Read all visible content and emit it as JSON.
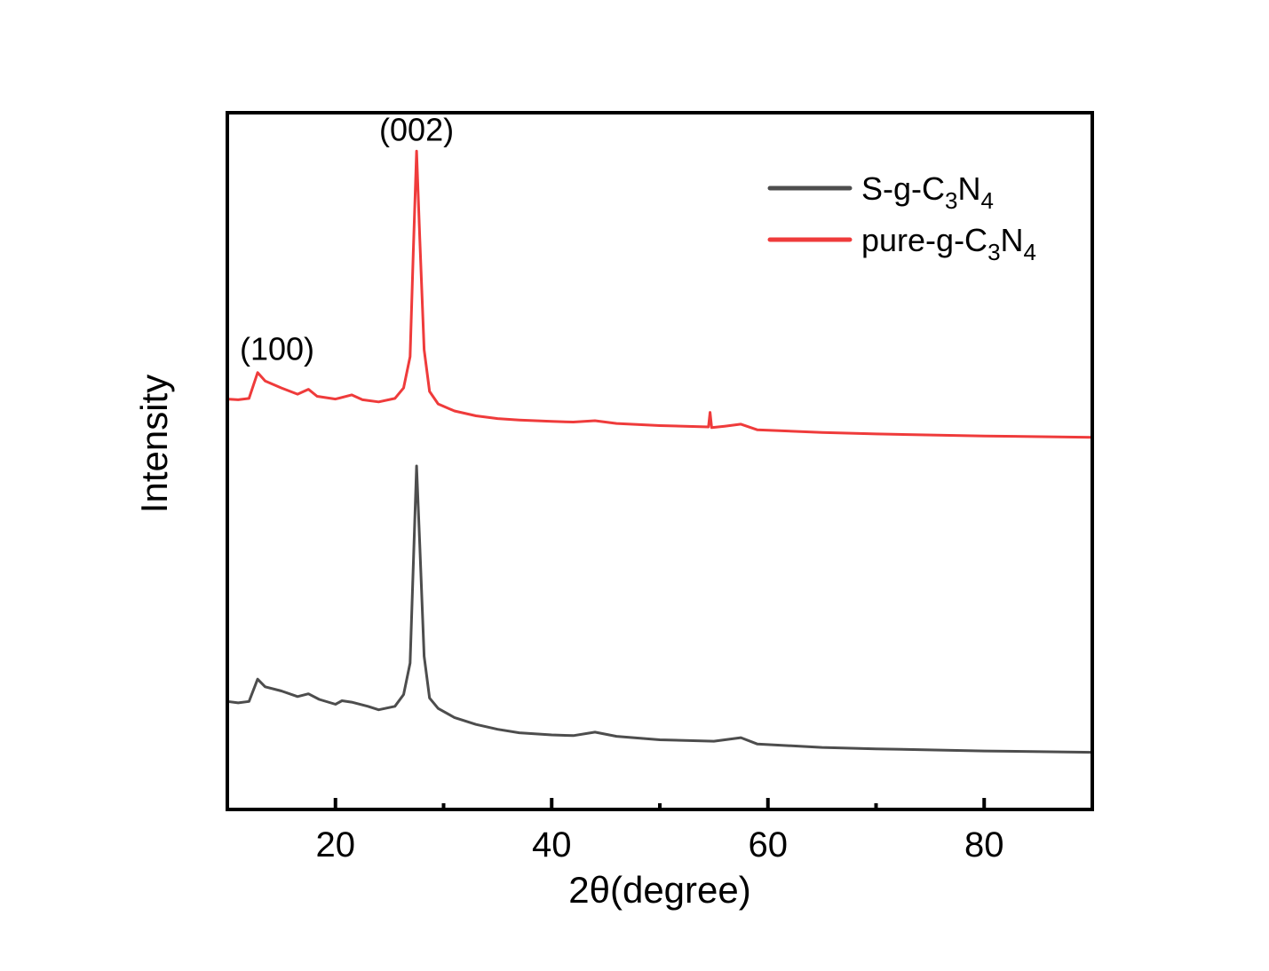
{
  "chart_data": {
    "type": "line",
    "title": "",
    "xlabel": "2θ(degree)",
    "ylabel": "Intensity",
    "xlim": [
      10,
      90
    ],
    "ylim": [
      0,
      100
    ],
    "xticks": [
      20,
      40,
      60,
      80
    ],
    "xticks_minor": [
      30,
      50,
      70
    ],
    "yticks": [],
    "grid": false,
    "legend_position": "top-right",
    "series": [
      {
        "name": "S-g-C3N4",
        "label_main": "S-g-C",
        "sub1": "3",
        "label_mid": "N",
        "sub2": "4",
        "color": "#4d4d4d",
        "points": [
          [
            10,
            15.5
          ],
          [
            11,
            15.3
          ],
          [
            12,
            15.5
          ],
          [
            12.8,
            18.7
          ],
          [
            13.5,
            17.6
          ],
          [
            15,
            17
          ],
          [
            16.5,
            16.2
          ],
          [
            17.5,
            16.6
          ],
          [
            18.5,
            15.8
          ],
          [
            20,
            15.1
          ],
          [
            20.6,
            15.6
          ],
          [
            21.5,
            15.4
          ],
          [
            23,
            14.8
          ],
          [
            24,
            14.3
          ],
          [
            25.5,
            14.8
          ],
          [
            26.3,
            16.5
          ],
          [
            26.9,
            21
          ],
          [
            27.2,
            35
          ],
          [
            27.5,
            49.3
          ],
          [
            27.8,
            38
          ],
          [
            28.2,
            22
          ],
          [
            28.7,
            16
          ],
          [
            29.5,
            14.5
          ],
          [
            31,
            13.2
          ],
          [
            33,
            12.2
          ],
          [
            35,
            11.5
          ],
          [
            37,
            11
          ],
          [
            40,
            10.7
          ],
          [
            42,
            10.6
          ],
          [
            44,
            11.1
          ],
          [
            46,
            10.5
          ],
          [
            50,
            10
          ],
          [
            55,
            9.8
          ],
          [
            57.5,
            10.3
          ],
          [
            59,
            9.4
          ],
          [
            65,
            8.9
          ],
          [
            70,
            8.7
          ],
          [
            80,
            8.4
          ],
          [
            90,
            8.2
          ]
        ]
      },
      {
        "name": "pure-g-C3N4",
        "label_main": "pure-g-C",
        "sub1": "3",
        "label_mid": "N",
        "sub2": "4",
        "color": "#ef3b3b",
        "points": [
          [
            10,
            58.9
          ],
          [
            11,
            58.8
          ],
          [
            12,
            59
          ],
          [
            12.8,
            62.7
          ],
          [
            13.5,
            61.5
          ],
          [
            15,
            60.5
          ],
          [
            16.5,
            59.6
          ],
          [
            17.5,
            60.3
          ],
          [
            18.3,
            59.3
          ],
          [
            20,
            58.9
          ],
          [
            21.5,
            59.5
          ],
          [
            22.5,
            58.8
          ],
          [
            24,
            58.5
          ],
          [
            25.5,
            59
          ],
          [
            26.3,
            60.5
          ],
          [
            26.9,
            65
          ],
          [
            27.2,
            80
          ],
          [
            27.5,
            94.5
          ],
          [
            27.8,
            82
          ],
          [
            28.2,
            66
          ],
          [
            28.7,
            60
          ],
          [
            29.5,
            58.2
          ],
          [
            31,
            57.2
          ],
          [
            33,
            56.5
          ],
          [
            35,
            56.1
          ],
          [
            37,
            55.9
          ],
          [
            40,
            55.7
          ],
          [
            42,
            55.6
          ],
          [
            44,
            55.8
          ],
          [
            46,
            55.4
          ],
          [
            50,
            55.1
          ],
          [
            54.5,
            54.9
          ],
          [
            54.65,
            57
          ],
          [
            54.8,
            54.8
          ],
          [
            56,
            55
          ],
          [
            57.5,
            55.3
          ],
          [
            59,
            54.5
          ],
          [
            65,
            54.1
          ],
          [
            70,
            53.9
          ],
          [
            80,
            53.6
          ],
          [
            90,
            53.4
          ]
        ]
      }
    ],
    "annotations": [
      {
        "text": "(002)",
        "x": 27.5,
        "y": 96
      },
      {
        "text": "(100)",
        "x": 14.6,
        "y": 64.5
      }
    ]
  }
}
